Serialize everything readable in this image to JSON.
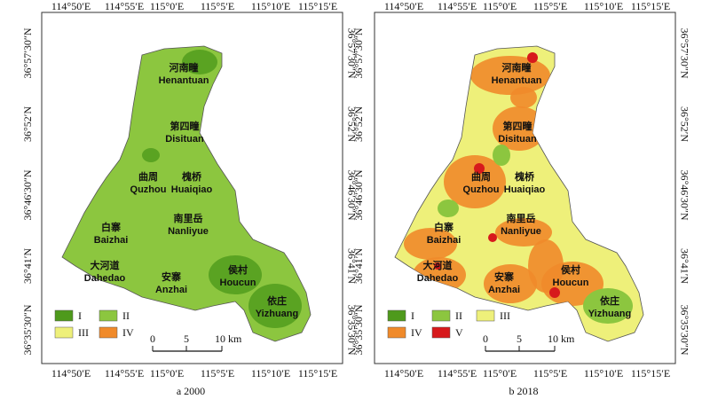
{
  "lon_labels": [
    "114°50′E",
    "114°55′E",
    "115°0′E",
    "115°5′E",
    "115°10′E",
    "115°15′E"
  ],
  "lat_labels": [
    "36°57′30″N",
    "36°52′N",
    "36°46′30″N",
    "36°41′N",
    "36°35′30″N"
  ],
  "scale_labels": [
    "0",
    "5",
    "10 km"
  ],
  "panels": [
    {
      "caption": "a 2000",
      "legend": [
        "I",
        "III",
        "II",
        "IV"
      ],
      "places": [
        [
          "河南疃",
          "Henantuan"
        ],
        [
          "第四疃",
          "Disituan"
        ],
        [
          "曲周",
          "Quzhou"
        ],
        [
          "槐桥",
          "Huaiqiao"
        ],
        [
          "南里岳",
          "Nanliyue"
        ],
        [
          "白寨",
          "Baizhai"
        ],
        [
          "大河道",
          "Dahedao"
        ],
        [
          "安寨",
          "Anzhai"
        ],
        [
          "侯村",
          "Houcun"
        ],
        [
          "依庄",
          "Yizhuang"
        ]
      ]
    },
    {
      "caption": "b 2018",
      "legend": [
        "I",
        "IV",
        "II",
        "V",
        "III"
      ],
      "places": [
        [
          "河南疃",
          "Henantuan"
        ],
        [
          "第四疃",
          "Disituan"
        ],
        [
          "曲周",
          "Quzhou"
        ],
        [
          "槐桥",
          "Huaiqiao"
        ],
        [
          "南里岳",
          "Nanliyue"
        ],
        [
          "白寨",
          "Baizhai"
        ],
        [
          "大河道",
          "Dahedao"
        ],
        [
          "安寨",
          "Anzhai"
        ],
        [
          "侯村",
          "Houcun"
        ],
        [
          "依庄",
          "Yizhuang"
        ]
      ]
    }
  ]
}
